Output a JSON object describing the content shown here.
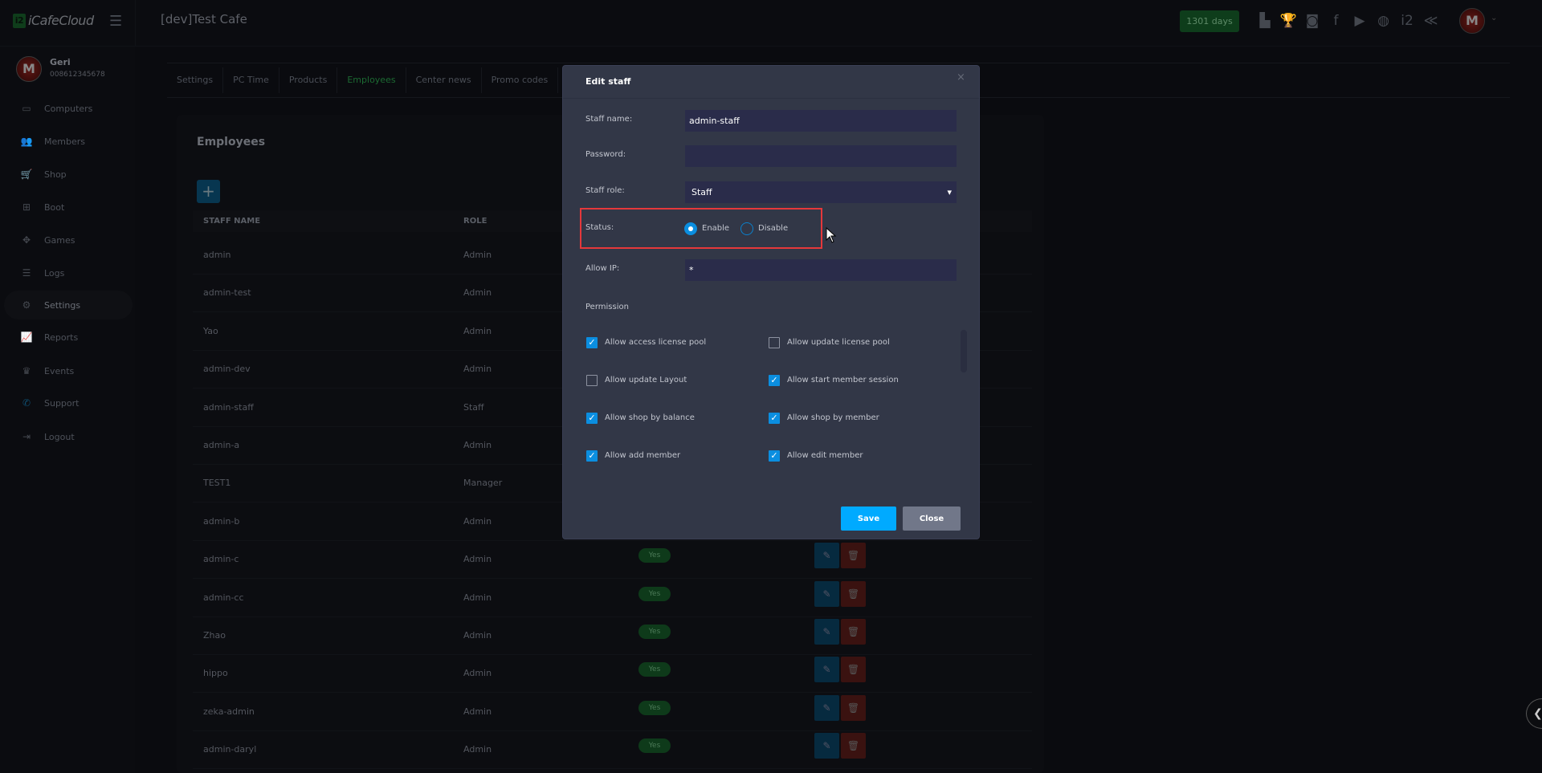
{
  "app": {
    "logo_text": "iCafeCloud",
    "cafe_title": "[dev]Test Cafe",
    "days_badge": "1301 days"
  },
  "top_icons": [
    "ranking-icon",
    "trophy-icon",
    "discord-icon",
    "facebook-icon",
    "youtube-icon",
    "globe-icon",
    "icafe-icon",
    "brand-icon"
  ],
  "user": {
    "name": "Geri",
    "phone": "0086123456​78"
  },
  "sidebar": {
    "items": [
      {
        "label": "Computers",
        "icon": "monitor-icon",
        "glyph": "▭"
      },
      {
        "label": "Members",
        "icon": "members-icon",
        "glyph": "👥"
      },
      {
        "label": "Shop",
        "icon": "cart-icon",
        "glyph": "🛒"
      },
      {
        "label": "Boot",
        "icon": "windows-icon",
        "glyph": "⊞"
      },
      {
        "label": "Games",
        "icon": "gamepad-icon",
        "glyph": "✥"
      },
      {
        "label": "Logs",
        "icon": "list-icon",
        "glyph": "☰"
      },
      {
        "label": "Settings",
        "icon": "gear-icon",
        "glyph": "⚙",
        "active": true
      },
      {
        "label": "Reports",
        "icon": "chart-icon",
        "glyph": "📈"
      },
      {
        "label": "Events",
        "icon": "crown-icon",
        "glyph": "♛"
      },
      {
        "label": "Support",
        "icon": "phone-icon",
        "glyph": "✆"
      },
      {
        "label": "Logout",
        "icon": "logout-icon",
        "glyph": "⇥"
      }
    ]
  },
  "tabs": [
    {
      "label": "Settings"
    },
    {
      "label": "PC Time"
    },
    {
      "label": "Products"
    },
    {
      "label": "Employees",
      "active": true
    },
    {
      "label": "Center news"
    },
    {
      "label": "Promo codes"
    }
  ],
  "employees": {
    "title": "Employees",
    "add_label": "+",
    "headers": [
      "STAFF NAME",
      "ROLE"
    ],
    "rows": [
      {
        "name": "admin",
        "role": "Admin"
      },
      {
        "name": "admin-test",
        "role": "Admin"
      },
      {
        "name": "Yao",
        "role": "Admin"
      },
      {
        "name": "admin-dev",
        "role": "Admin"
      },
      {
        "name": "admin-staff",
        "role": "Staff"
      },
      {
        "name": "admin-a",
        "role": "Admin"
      },
      {
        "name": "TEST1",
        "role": "Manager"
      },
      {
        "name": "admin-b",
        "role": "Admin"
      },
      {
        "name": "admin-c",
        "role": "Admin",
        "status": "Yes"
      },
      {
        "name": "admin-cc",
        "role": "Admin",
        "status": "Yes"
      },
      {
        "name": "Zhao",
        "role": "Admin",
        "status": "Yes"
      },
      {
        "name": "hippo",
        "role": "Admin",
        "status": "Yes"
      },
      {
        "name": "zeka-admin",
        "role": "Admin",
        "status": "Yes"
      },
      {
        "name": "admin-daryl",
        "role": "Admin",
        "status": "Yes"
      }
    ]
  },
  "modal": {
    "title": "Edit staff",
    "close_glyph": "×",
    "staff_name_label": "Staff name:",
    "staff_name_value": "admin-staff",
    "password_label": "Password:",
    "password_value": "",
    "role_label": "Staff role:",
    "role_value": "Staff",
    "status_label": "Status:",
    "status_options": [
      "Enable",
      "Disable"
    ],
    "status_selected": "Enable",
    "allow_ip_label": "Allow IP:",
    "allow_ip_value": "*",
    "permission_label": "Permission",
    "permissions": [
      {
        "label": "Allow access license pool",
        "checked": true
      },
      {
        "label": "Allow update license pool",
        "checked": false
      },
      {
        "label": "Allow update Layout",
        "checked": false
      },
      {
        "label": "Allow start member session",
        "checked": true
      },
      {
        "label": "Allow shop by balance",
        "checked": true
      },
      {
        "label": "Allow shop by member",
        "checked": true
      },
      {
        "label": "Allow add member",
        "checked": true
      },
      {
        "label": "Allow edit member",
        "checked": true
      }
    ],
    "save_label": "Save",
    "close_label": "Close"
  },
  "colors": {
    "accent": "#00aaff",
    "highlight_box": "#e5383b",
    "active_tab": "#25a94b",
    "checkbox": "#0b8ee0"
  }
}
